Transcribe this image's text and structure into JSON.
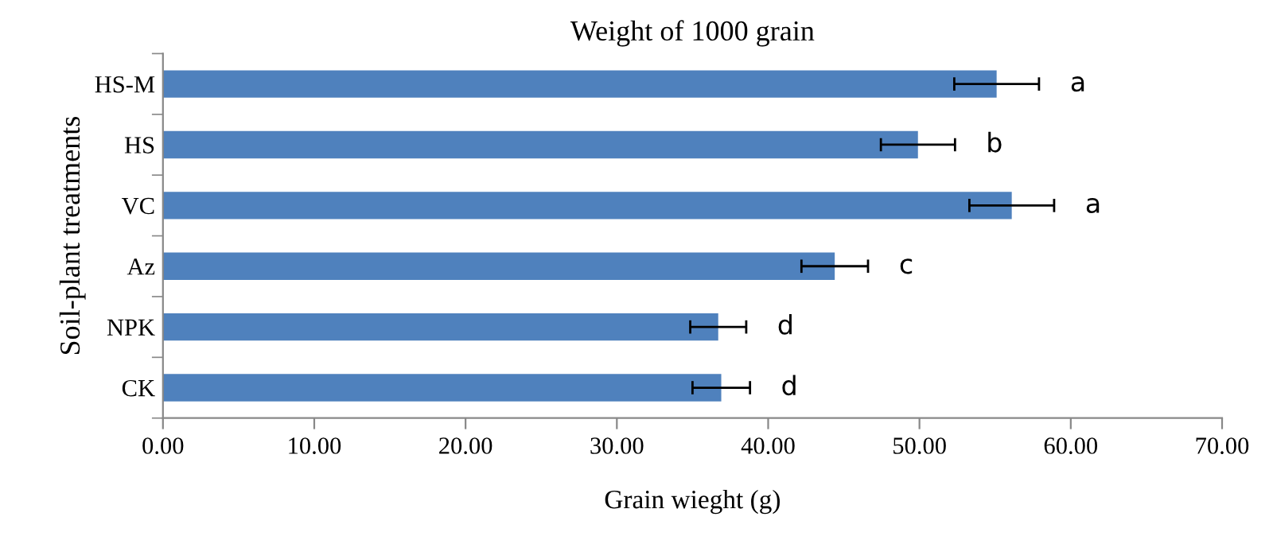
{
  "chart_data": {
    "type": "bar",
    "orientation": "horizontal",
    "title": "Weight of 1000 grain",
    "xlabel": "Grain wieght (g)",
    "ylabel": "Soil-plant treatments",
    "categories": [
      "HS-M",
      "HS",
      "VC",
      "Az",
      "NPK",
      "CK"
    ],
    "values": [
      55.1,
      49.9,
      56.1,
      44.4,
      36.7,
      36.9
    ],
    "errors": [
      2.8,
      2.45,
      2.8,
      2.2,
      1.85,
      1.9
    ],
    "color": "#4f81bd",
    "xlim": [
      0,
      70
    ],
    "xticks": [
      {
        "value": 0,
        "label": "0.00"
      },
      {
        "value": 10,
        "label": "10.00"
      },
      {
        "value": 20,
        "label": "20.00"
      },
      {
        "value": 30,
        "label": "30.00"
      },
      {
        "value": 40,
        "label": "40.00"
      },
      {
        "value": 50,
        "label": "50.00"
      },
      {
        "value": 60,
        "label": "60.00"
      },
      {
        "value": 70,
        "label": "70.00"
      }
    ],
    "grid": false,
    "value_labels": [
      "a",
      "b",
      "a",
      "c",
      "d",
      "d"
    ]
  }
}
